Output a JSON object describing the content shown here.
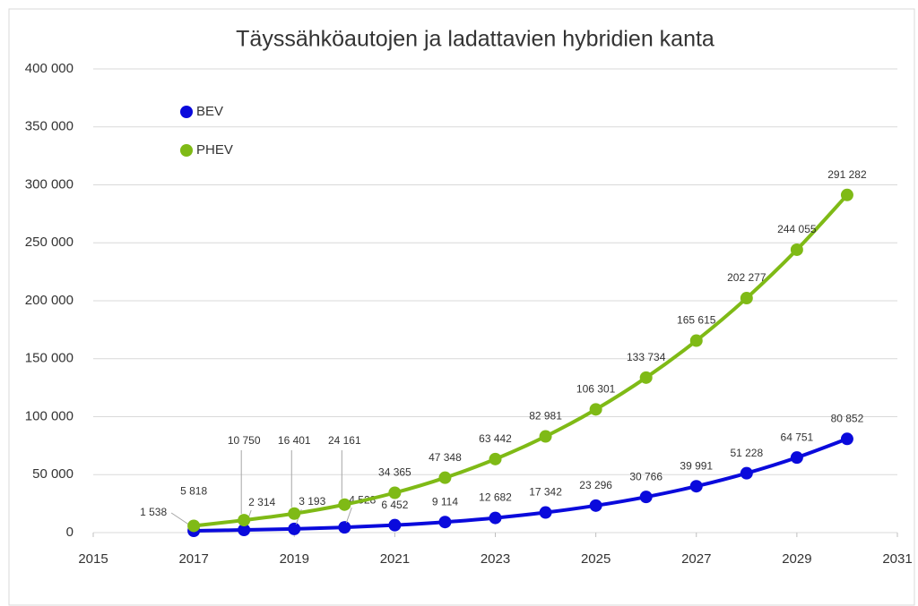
{
  "chart_data": {
    "type": "line",
    "title": "Täyssähköautojen ja ladattavien hybridien kanta",
    "x": [
      2017,
      2018,
      2019,
      2020,
      2021,
      2022,
      2023,
      2024,
      2025,
      2026,
      2027,
      2028,
      2029,
      2030
    ],
    "series": [
      {
        "name": "BEV",
        "color": "#0a0adc",
        "values": [
          1538,
          2314,
          3193,
          4528,
          6452,
          9114,
          12682,
          17342,
          23296,
          30766,
          39991,
          51228,
          64751,
          80852
        ],
        "value_labels": [
          "1 538",
          "2 314",
          "3 193",
          "4 528",
          "6 452",
          "9 114",
          "12 682",
          "17 342",
          "23 296",
          "30 766",
          "39 991",
          "51 228",
          "64 751",
          "80 852"
        ]
      },
      {
        "name": "PHEV",
        "color": "#7fba16",
        "values": [
          5818,
          10750,
          16401,
          24161,
          34365,
          47348,
          63442,
          82981,
          106301,
          133734,
          165615,
          202277,
          244055,
          291282
        ],
        "value_labels": [
          "5 818",
          "10 750",
          "16 401",
          "24 161",
          "34 365",
          "47 348",
          "63 442",
          "82 981",
          "106 301",
          "133 734",
          "165 615",
          "202 277",
          "244 055",
          "291 282"
        ]
      }
    ],
    "xlim": [
      2015,
      2031
    ],
    "xticks": [
      2015,
      2017,
      2019,
      2021,
      2023,
      2025,
      2027,
      2029,
      2031
    ],
    "ylim": [
      0,
      400000
    ],
    "yticks": [
      {
        "value": 0,
        "label": "0"
      },
      {
        "value": 50000,
        "label": "50 000"
      },
      {
        "value": 100000,
        "label": "100 000"
      },
      {
        "value": 150000,
        "label": "150 000"
      },
      {
        "value": 200000,
        "label": "200 000"
      },
      {
        "value": 250000,
        "label": "250 000"
      },
      {
        "value": 300000,
        "label": "300 000"
      },
      {
        "value": 350000,
        "label": "350 000"
      },
      {
        "value": 400000,
        "label": "400 000"
      }
    ],
    "grid": true,
    "legend": "upper left"
  }
}
